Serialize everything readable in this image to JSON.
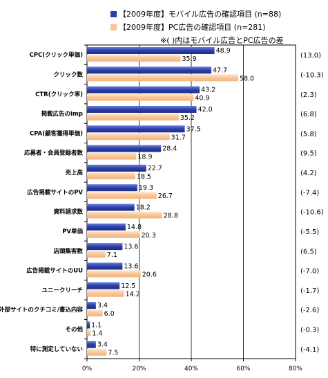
{
  "legend": {
    "mobile": "【2009年度】モバイル広告の確認項目 (n=88)",
    "pc": "【2009年度】PC広告の確認項目 (n=281)"
  },
  "note": "※( )内はモバイル広告とPC広告の差",
  "colors": {
    "mobile": "#2b3fa8",
    "mobile_light": "#6a7fe0",
    "pc": "#f8c596",
    "pc_light": "#fde9d5",
    "grid": "#000000"
  },
  "chart_data": {
    "type": "bar",
    "orientation": "horizontal",
    "categories": [
      "CPC(クリック単価)",
      "クリック数",
      "CTR(クリック率)",
      "掲載広告のimp",
      "CPA(顧客獲得単価)",
      "応募者・会員登録者数",
      "売上高",
      "広告掲載サイトのPV",
      "資料請求数",
      "PV単価",
      "店頭集客数",
      "広告掲載サイトのUU",
      "ユニークリーチ",
      "外部サイトのクチコミ/書込内容",
      "その他",
      "特に測定していない"
    ],
    "series": [
      {
        "name": "【2009年度】モバイル広告の確認項目 (n=88)",
        "values": [
          48.9,
          47.7,
          43.2,
          42.0,
          37.5,
          28.4,
          22.7,
          19.3,
          18.2,
          14.8,
          13.6,
          13.6,
          12.5,
          3.4,
          1.1,
          3.4
        ]
      },
      {
        "name": "【2009年度】PC広告の確認項目 (n=281)",
        "values": [
          35.9,
          58.0,
          40.9,
          35.2,
          31.7,
          18.9,
          18.5,
          26.7,
          28.8,
          20.3,
          7.1,
          20.6,
          14.2,
          6.0,
          1.4,
          7.5
        ]
      }
    ],
    "differences": [
      "(13.0)",
      "(-10.3)",
      "(2.3)",
      "(6.8)",
      "(5.8)",
      "(9.5)",
      "(4.2)",
      "(-7.4)",
      "(-10.6)",
      "(-5.5)",
      "(6.5)",
      "(-7.0)",
      "(-1.7)",
      "(-2.6)",
      "(-0.3)",
      "(-4.1)"
    ],
    "xlim": [
      0,
      80
    ],
    "xticks": [
      "0%",
      "20%",
      "40%",
      "60%",
      "80%"
    ],
    "title": "",
    "xlabel": "",
    "ylabel": ""
  }
}
